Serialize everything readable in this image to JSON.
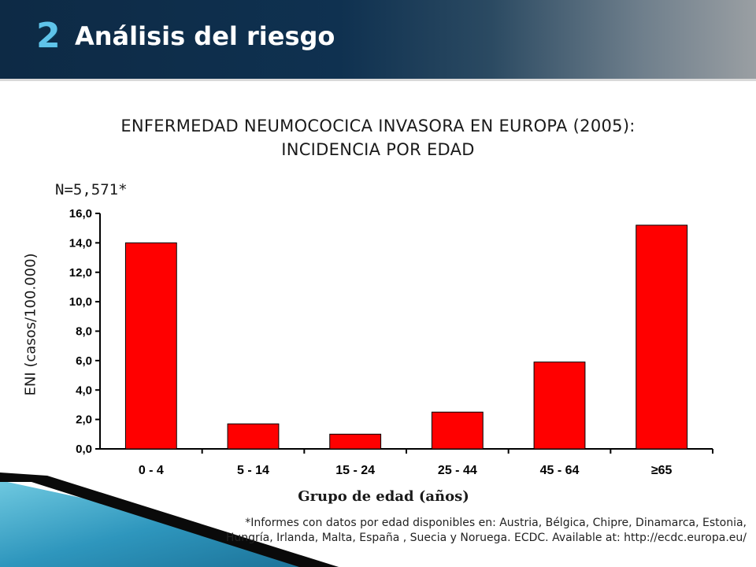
{
  "header": {
    "section_number": "2",
    "section_title": "Análisis del  riesgo"
  },
  "colors": {
    "bar": "#ff0000",
    "header_dark": "#0d2a45",
    "accent": "#5fc4ea"
  },
  "n_label": "N=5,571*",
  "footnote": "*Informes con datos por edad disponibles en: Austria, Bélgica, Chipre, Dinamarca, Estonia, Hungría, Irlanda, Malta, España , Suecia y Noruega. ECDC. Available at: http://ecdc.europa.eu/",
  "chart_data": {
    "type": "bar",
    "title_line1": "ENFERMEDAD NEUMOCOCICA INVASORA EN EUROPA (2005):",
    "title_line2": "INCIDENCIA POR EDAD",
    "xlabel": "Grupo de edad (años)",
    "ylabel": "ENI (casos/100.000)",
    "categories": [
      "0 - 4",
      "5 - 14",
      "15 - 24",
      "25 - 44",
      "45 - 64",
      "≥65"
    ],
    "values": [
      14.0,
      1.7,
      1.0,
      2.5,
      5.9,
      15.2
    ],
    "ylim": [
      0,
      16
    ],
    "yticks": [
      "0,0",
      "2,0",
      "4,0",
      "6,0",
      "8,0",
      "10,0",
      "12,0",
      "14,0",
      "16,0"
    ],
    "grid": false,
    "legend": "none"
  }
}
